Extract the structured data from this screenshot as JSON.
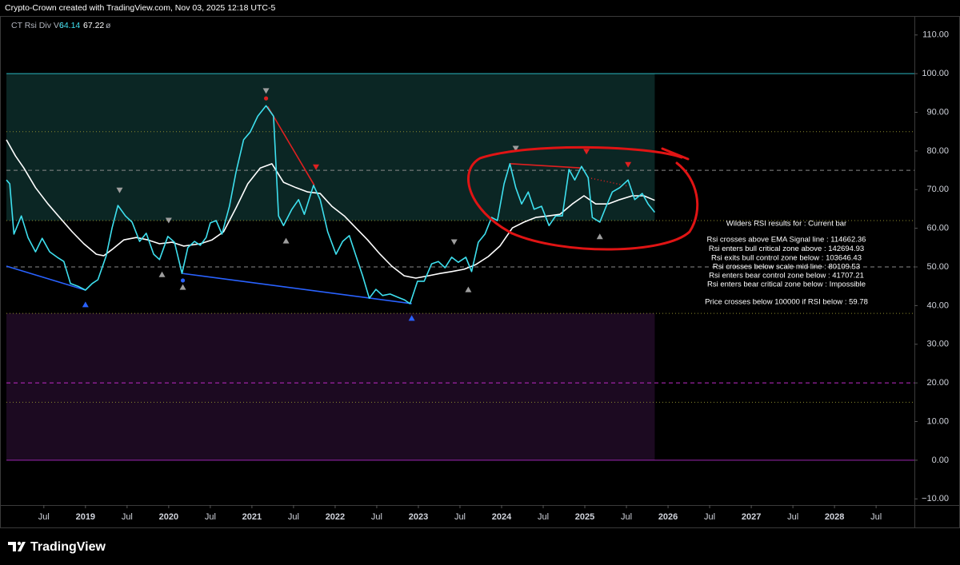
{
  "chart_data": {
    "type": "line",
    "watermark": "Crypto-Crown created with TradingView.com, Nov 03, 2025 12:18 UTC-5",
    "indicator": "CT Rsi Div V6",
    "indicator_extra": "ø",
    "brand": "TradingView",
    "xlim": [
      2018.05,
      2028.96
    ],
    "ylim": [
      -11.6,
      114.5
    ],
    "xticks": [
      {
        "value": 2018.5,
        "label": "Jul"
      },
      2019,
      {
        "value": 2019.5,
        "label": "Jul"
      },
      2020,
      {
        "value": 2020.5,
        "label": "Jul"
      },
      2021,
      {
        "value": 2021.5,
        "label": "Jul"
      },
      2022,
      {
        "value": 2022.5,
        "label": "Jul"
      },
      2023,
      {
        "value": 2023.5,
        "label": "Jul"
      },
      2024,
      {
        "value": 2024.5,
        "label": "Jul"
      },
      2025,
      {
        "value": 2025.5,
        "label": "Jul"
      },
      2026,
      {
        "value": 2026.5,
        "label": "Jul"
      },
      2027,
      {
        "value": 2027.5,
        "label": "Jul"
      },
      2028,
      {
        "value": 2028.5,
        "label": "Jul"
      }
    ],
    "yticks": [
      {
        "value": 110,
        "label": "110.00"
      },
      {
        "value": 100,
        "label": "100.00"
      },
      {
        "value": 90,
        "label": "90.00"
      },
      {
        "value": 80,
        "label": "80.00"
      },
      {
        "value": 70,
        "label": "70.00"
      },
      {
        "value": 60,
        "label": "60.00"
      },
      {
        "value": 50,
        "label": "50.00"
      },
      {
        "value": 40,
        "label": "40.00"
      },
      {
        "value": 30,
        "label": "30.00"
      },
      {
        "value": 20,
        "label": "20.00"
      },
      {
        "value": 10,
        "label": "10.00"
      },
      {
        "value": 0,
        "label": "0.00"
      },
      {
        "value": -10,
        "label": "−10.00"
      }
    ],
    "grid": false,
    "zones": [
      {
        "from": 62,
        "to": 100,
        "color": "#0b2624"
      },
      {
        "from": 0,
        "to": 38,
        "color": "#1c0a21"
      }
    ],
    "levels": [
      {
        "value": 100,
        "color": "#2bb7bf",
        "style": "solid"
      },
      {
        "value": 85,
        "color": "#8c8a2e",
        "style": "dotted"
      },
      {
        "value": 75,
        "color": "#8a8a8a",
        "style": "dashed"
      },
      {
        "value": 62,
        "color": "#8c8a2e",
        "style": "dotted"
      },
      {
        "value": 50,
        "color": "#8a8a8a",
        "style": "dashed"
      },
      {
        "value": 38,
        "color": "#8c8a2e",
        "style": "dotted"
      },
      {
        "value": 20,
        "color": "#c02ac8",
        "style": "dashed"
      },
      {
        "value": 15,
        "color": "#8c8a2e",
        "style": "dotted"
      },
      {
        "value": 0,
        "color": "#9c27b0",
        "style": "solid"
      }
    ],
    "series": [
      {
        "color": "#3ee0ef",
        "x": [
          2018.05,
          2018.09,
          2018.14,
          2018.23,
          2018.31,
          2018.4,
          2018.48,
          2018.57,
          2018.66,
          2018.74,
          2018.82,
          2018.91,
          2019.0,
          2019.08,
          2019.15,
          2019.25,
          2019.32,
          2019.39,
          2019.48,
          2019.56,
          2019.65,
          2019.73,
          2019.82,
          2019.89,
          2019.99,
          2020.07,
          2020.16,
          2020.23,
          2020.31,
          2020.38,
          2020.45,
          2020.5,
          2020.57,
          2020.64,
          2020.73,
          2020.81,
          2020.9,
          2020.98,
          2021.07,
          2021.17,
          2021.26,
          2021.32,
          2021.38,
          2021.48,
          2021.56,
          2021.63,
          2021.74,
          2021.82,
          2021.91,
          2022.01,
          2022.09,
          2022.17,
          2022.25,
          2022.33,
          2022.41,
          2022.49,
          2022.57,
          2022.66,
          2022.76,
          2022.83,
          2022.9,
          2022.99,
          2023.07,
          2023.16,
          2023.24,
          2023.32,
          2023.4,
          2023.48,
          2023.57,
          2023.64,
          2023.72,
          2023.8,
          2023.88,
          2023.95,
          2024.03,
          2024.1,
          2024.17,
          2024.24,
          2024.32,
          2024.39,
          2024.48,
          2024.57,
          2024.65,
          2024.73,
          2024.81,
          2024.88,
          2024.96,
          2025.04,
          2025.09,
          2025.18,
          2025.25,
          2025.33,
          2025.42,
          2025.52,
          2025.6,
          2025.69,
          2025.76,
          2025.84
        ],
        "values": [
          72.5,
          71.5,
          58.5,
          63.2,
          57.6,
          53.9,
          57.4,
          53.9,
          52.5,
          51.4,
          45.7,
          45.0,
          44.0,
          45.7,
          46.7,
          52.9,
          60.1,
          65.9,
          63.2,
          61.6,
          56.6,
          58.7,
          53.3,
          51.9,
          57.9,
          56.4,
          48.3,
          55.0,
          56.6,
          55.6,
          57.6,
          61.4,
          62.0,
          58.5,
          65.7,
          74.6,
          82.9,
          84.9,
          89.0,
          91.7,
          89.0,
          63.2,
          60.7,
          64.9,
          67.4,
          63.6,
          71.1,
          67.4,
          59.1,
          53.3,
          56.6,
          58.1,
          52.9,
          47.7,
          41.9,
          44.2,
          42.6,
          43.0,
          42.1,
          41.5,
          40.5,
          46.3,
          46.3,
          50.8,
          51.4,
          49.8,
          52.5,
          51.2,
          52.5,
          48.8,
          56.4,
          58.5,
          62.8,
          62.0,
          71.5,
          76.7,
          70.5,
          66.3,
          69.4,
          64.9,
          65.7,
          60.7,
          63.2,
          63.2,
          75.2,
          72.5,
          76.0,
          73.1,
          62.8,
          61.6,
          65.3,
          69.4,
          70.5,
          72.5,
          67.4,
          69.0,
          66.3,
          64.14
        ]
      },
      {
        "color": "#ffffff",
        "x": [
          2018.05,
          2018.16,
          2018.26,
          2018.4,
          2018.55,
          2018.69,
          2018.84,
          2018.98,
          2019.13,
          2019.22,
          2019.32,
          2019.46,
          2019.61,
          2019.75,
          2019.89,
          2020.04,
          2020.18,
          2020.38,
          2020.52,
          2020.66,
          2020.81,
          2020.95,
          2021.1,
          2021.24,
          2021.38,
          2021.53,
          2021.67,
          2021.82,
          2021.96,
          2022.11,
          2022.25,
          2022.39,
          2022.54,
          2022.68,
          2022.83,
          2022.97,
          2023.12,
          2023.26,
          2023.4,
          2023.55,
          2023.69,
          2023.84,
          2023.98,
          2024.13,
          2024.27,
          2024.41,
          2024.56,
          2024.7,
          2024.85,
          2024.99,
          2025.13,
          2025.28,
          2025.42,
          2025.57,
          2025.71,
          2025.84
        ],
        "values": [
          82.9,
          78.7,
          75.6,
          70.5,
          66.3,
          62.8,
          59.1,
          56.0,
          53.3,
          52.9,
          54.5,
          57.0,
          57.6,
          57.0,
          56.0,
          56.4,
          55.4,
          56.0,
          57.0,
          59.1,
          65.3,
          71.5,
          75.6,
          76.7,
          71.9,
          70.5,
          69.4,
          69.0,
          65.7,
          63.2,
          60.1,
          57.0,
          53.3,
          50.2,
          47.7,
          47.1,
          47.7,
          48.3,
          48.8,
          49.4,
          50.6,
          52.7,
          55.4,
          60.1,
          61.6,
          62.8,
          63.2,
          63.6,
          66.3,
          68.4,
          66.3,
          66.3,
          67.4,
          68.4,
          68.4,
          67.22
        ]
      }
    ],
    "divergence_lines": [
      {
        "x": [
          2018.05,
          2019.0
        ],
        "y": [
          50.2,
          44.0
        ],
        "color": "#2962ff",
        "style": "solid"
      },
      {
        "x": [
          2020.17,
          2022.92
        ],
        "y": [
          48.3,
          40.5
        ],
        "color": "#2962ff",
        "style": "solid"
      },
      {
        "x": [
          2021.19,
          2021.75
        ],
        "y": [
          91.5,
          71.1
        ],
        "color": "#e02020",
        "style": "solid"
      },
      {
        "x": [
          2024.1,
          2024.96
        ],
        "y": [
          76.7,
          75.6
        ],
        "color": "#e02020",
        "style": "solid"
      },
      {
        "x": [
          2025.04,
          2025.52
        ],
        "y": [
          73.1,
          70.9
        ],
        "color": "#e02020",
        "style": "dotted"
      }
    ],
    "markers": [
      {
        "x": 2021.17,
        "y": 95.5,
        "shape": "down",
        "color": "#9e9e9e"
      },
      {
        "x": 2021.17,
        "y": 93.6,
        "shape": "dot",
        "color": "#e02020"
      },
      {
        "x": 2021.77,
        "y": 75.8,
        "shape": "down",
        "color": "#e02020"
      },
      {
        "x": 2019.41,
        "y": 69.8,
        "shape": "down",
        "color": "#9e9e9e"
      },
      {
        "x": 2020.0,
        "y": 62.0,
        "shape": "down",
        "color": "#9e9e9e"
      },
      {
        "x": 2021.41,
        "y": 56.8,
        "shape": "up",
        "color": "#9e9e9e"
      },
      {
        "x": 2019.92,
        "y": 48.1,
        "shape": "up",
        "color": "#9e9e9e"
      },
      {
        "x": 2020.17,
        "y": 46.5,
        "shape": "dot",
        "color": "#2962ff"
      },
      {
        "x": 2020.17,
        "y": 44.8,
        "shape": "up",
        "color": "#9e9e9e"
      },
      {
        "x": 2019.0,
        "y": 40.3,
        "shape": "up",
        "color": "#2962ff"
      },
      {
        "x": 2022.92,
        "y": 36.8,
        "shape": "up",
        "color": "#2962ff"
      },
      {
        "x": 2023.43,
        "y": 56.4,
        "shape": "down",
        "color": "#9e9e9e"
      },
      {
        "x": 2023.6,
        "y": 44.2,
        "shape": "up",
        "color": "#9e9e9e"
      },
      {
        "x": 2024.17,
        "y": 80.6,
        "shape": "down",
        "color": "#9e9e9e"
      },
      {
        "x": 2025.02,
        "y": 79.8,
        "shape": "down",
        "color": "#e02020"
      },
      {
        "x": 2025.52,
        "y": 76.4,
        "shape": "down",
        "color": "#e02020"
      },
      {
        "x": 2025.18,
        "y": 57.9,
        "shape": "up",
        "color": "#9e9e9e"
      }
    ],
    "results": [
      "Wilders RSI results for : Current bar",
      "Rsi crosses above EMA Signal line : 114662.36",
      "Rsi enters bull critical zone above : 142694.93",
      "Rsi exits bull control zone below : 103646.43",
      "Rsi crosses below scale mid line : 80109.53",
      "Rsi enters bear control zone below : 41707.21",
      "Rsi enters bear critical zone below : Impossible",
      "Price crosses below 100000 if RSI below : 59.78"
    ]
  }
}
